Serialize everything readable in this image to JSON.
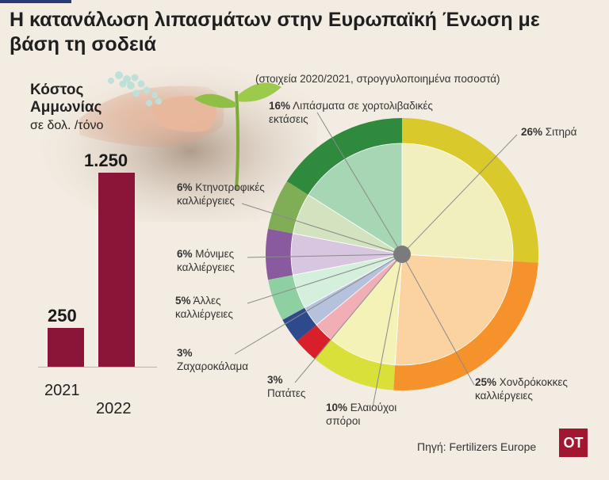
{
  "title": "Η κατανάλωση λιπασμάτων στην Ευρωπαϊκή Ένωση με βάση τη σοδειά",
  "colors": {
    "bar": "#8b1538",
    "logo_bg": "#a3162f",
    "background": "#f3ece2"
  },
  "icons": {
    "photo": "hand-with-fertilizer-and-sprout-photo"
  },
  "chart_data": [
    {
      "type": "bar",
      "title": "Κόστος Αμμωνίας",
      "ylabel": "σε δολ. /τόνο",
      "categories": [
        "2021",
        "2022"
      ],
      "values": [
        250,
        1250
      ],
      "value_labels": [
        "250",
        "1.250"
      ],
      "ylim": [
        0,
        1250
      ]
    },
    {
      "type": "pie",
      "subtitle": "(στοιχεία 2020/2021, στρογγυλοποιημένα ποσοστά)",
      "slices": [
        {
          "label": "Σιτηρά",
          "value": 26,
          "pct": "26%",
          "color": "#d9c92a",
          "inner": "#f2efbf"
        },
        {
          "label": "Χονδρόκοκκες καλλιέργειες",
          "value": 25,
          "pct": "25%",
          "color": "#f5922b",
          "inner": "#fbd3a1"
        },
        {
          "label": "Ελαιούχοι σπόροι",
          "value": 10,
          "pct": "10%",
          "color": "#d9e03a",
          "inner": "#f4f2b6"
        },
        {
          "label": "Πατάτες",
          "value": 3,
          "pct": "3%",
          "color": "#d81f2a",
          "inner": "#f1aeb5"
        },
        {
          "label": "Ζαχαροκάλαμα",
          "value": 3,
          "pct": "3%",
          "color": "#2f4a8c",
          "inner": "#b6c1dc"
        },
        {
          "label": "Άλλες καλλιέργειες",
          "value": 5,
          "pct": "5%",
          "color": "#8fd0a3",
          "inner": "#d4efdc"
        },
        {
          "label": "Μόνιμες καλλιέργειες",
          "value": 6,
          "pct": "6%",
          "color": "#8a5a9e",
          "inner": "#d8c6e0"
        },
        {
          "label": "Κτηνοτροφικές καλλιέργειες",
          "value": 6,
          "pct": "6%",
          "color": "#7fae57",
          "inner": "#d3e3bf"
        },
        {
          "label": "Λιπάσματα σε χορτολιβαδικές εκτάσεις",
          "value": 16,
          "pct": "16%",
          "color": "#2f8a3e",
          "inner": "#a6d6b4"
        }
      ]
    }
  ],
  "labels": {
    "sitira": {
      "pct": "26%",
      "text": "Σιτηρά"
    },
    "chondro": {
      "pct": "25%",
      "line1": "Χονδρόκοκκες",
      "line2": "καλλιέργειες"
    },
    "elaio": {
      "pct": "10%",
      "line1": "Ελαιούχοι",
      "line2": "σπόροι"
    },
    "patates": {
      "pct": "3%",
      "line2": "Πατάτες"
    },
    "zachar": {
      "pct": "3%",
      "line2": "Ζαχαροκάλαμα"
    },
    "alles": {
      "pct": "5%",
      "line1": "Άλλες",
      "line2": "καλλιέργειες"
    },
    "monimes": {
      "pct": "6%",
      "line1": "Μόνιμες",
      "line2": "καλλιέργειες"
    },
    "ktino": {
      "pct": "6%",
      "line1": "Κτηνοτροφικές",
      "line2": "καλλιέργειες"
    },
    "lipasmata": {
      "pct": "16%",
      "line1": "Λιπάσματα σε χορτολιβαδικές",
      "line2": "εκτάσεις"
    }
  },
  "source": "Πηγή: Fertilizers Europe",
  "logo": "OT"
}
